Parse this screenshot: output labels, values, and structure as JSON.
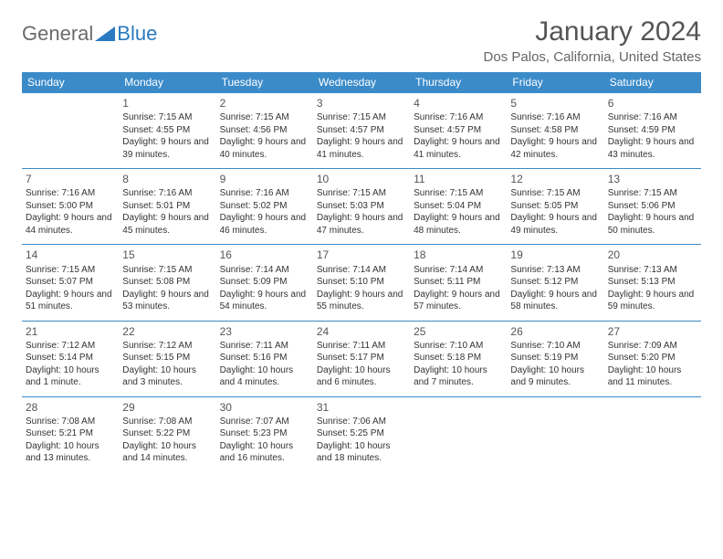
{
  "logo": {
    "general": "General",
    "blue": "Blue"
  },
  "title": "January 2024",
  "location": "Dos Palos, California, United States",
  "colors": {
    "header_bg": "#3b8bc9",
    "header_fg": "#ffffff",
    "border": "#3b8bc9",
    "text": "#333333",
    "title": "#555555",
    "subtitle": "#666666",
    "logo_gray": "#6b6b6b",
    "logo_blue": "#2a7ac0"
  },
  "day_labels": [
    "Sunday",
    "Monday",
    "Tuesday",
    "Wednesday",
    "Thursday",
    "Friday",
    "Saturday"
  ],
  "weeks": [
    [
      {
        "n": "",
        "sun": "",
        "set": "",
        "dl": ""
      },
      {
        "n": "1",
        "sun": "Sunrise: 7:15 AM",
        "set": "Sunset: 4:55 PM",
        "dl": "Daylight: 9 hours and 39 minutes."
      },
      {
        "n": "2",
        "sun": "Sunrise: 7:15 AM",
        "set": "Sunset: 4:56 PM",
        "dl": "Daylight: 9 hours and 40 minutes."
      },
      {
        "n": "3",
        "sun": "Sunrise: 7:15 AM",
        "set": "Sunset: 4:57 PM",
        "dl": "Daylight: 9 hours and 41 minutes."
      },
      {
        "n": "4",
        "sun": "Sunrise: 7:16 AM",
        "set": "Sunset: 4:57 PM",
        "dl": "Daylight: 9 hours and 41 minutes."
      },
      {
        "n": "5",
        "sun": "Sunrise: 7:16 AM",
        "set": "Sunset: 4:58 PM",
        "dl": "Daylight: 9 hours and 42 minutes."
      },
      {
        "n": "6",
        "sun": "Sunrise: 7:16 AM",
        "set": "Sunset: 4:59 PM",
        "dl": "Daylight: 9 hours and 43 minutes."
      }
    ],
    [
      {
        "n": "7",
        "sun": "Sunrise: 7:16 AM",
        "set": "Sunset: 5:00 PM",
        "dl": "Daylight: 9 hours and 44 minutes."
      },
      {
        "n": "8",
        "sun": "Sunrise: 7:16 AM",
        "set": "Sunset: 5:01 PM",
        "dl": "Daylight: 9 hours and 45 minutes."
      },
      {
        "n": "9",
        "sun": "Sunrise: 7:16 AM",
        "set": "Sunset: 5:02 PM",
        "dl": "Daylight: 9 hours and 46 minutes."
      },
      {
        "n": "10",
        "sun": "Sunrise: 7:15 AM",
        "set": "Sunset: 5:03 PM",
        "dl": "Daylight: 9 hours and 47 minutes."
      },
      {
        "n": "11",
        "sun": "Sunrise: 7:15 AM",
        "set": "Sunset: 5:04 PM",
        "dl": "Daylight: 9 hours and 48 minutes."
      },
      {
        "n": "12",
        "sun": "Sunrise: 7:15 AM",
        "set": "Sunset: 5:05 PM",
        "dl": "Daylight: 9 hours and 49 minutes."
      },
      {
        "n": "13",
        "sun": "Sunrise: 7:15 AM",
        "set": "Sunset: 5:06 PM",
        "dl": "Daylight: 9 hours and 50 minutes."
      }
    ],
    [
      {
        "n": "14",
        "sun": "Sunrise: 7:15 AM",
        "set": "Sunset: 5:07 PM",
        "dl": "Daylight: 9 hours and 51 minutes."
      },
      {
        "n": "15",
        "sun": "Sunrise: 7:15 AM",
        "set": "Sunset: 5:08 PM",
        "dl": "Daylight: 9 hours and 53 minutes."
      },
      {
        "n": "16",
        "sun": "Sunrise: 7:14 AM",
        "set": "Sunset: 5:09 PM",
        "dl": "Daylight: 9 hours and 54 minutes."
      },
      {
        "n": "17",
        "sun": "Sunrise: 7:14 AM",
        "set": "Sunset: 5:10 PM",
        "dl": "Daylight: 9 hours and 55 minutes."
      },
      {
        "n": "18",
        "sun": "Sunrise: 7:14 AM",
        "set": "Sunset: 5:11 PM",
        "dl": "Daylight: 9 hours and 57 minutes."
      },
      {
        "n": "19",
        "sun": "Sunrise: 7:13 AM",
        "set": "Sunset: 5:12 PM",
        "dl": "Daylight: 9 hours and 58 minutes."
      },
      {
        "n": "20",
        "sun": "Sunrise: 7:13 AM",
        "set": "Sunset: 5:13 PM",
        "dl": "Daylight: 9 hours and 59 minutes."
      }
    ],
    [
      {
        "n": "21",
        "sun": "Sunrise: 7:12 AM",
        "set": "Sunset: 5:14 PM",
        "dl": "Daylight: 10 hours and 1 minute."
      },
      {
        "n": "22",
        "sun": "Sunrise: 7:12 AM",
        "set": "Sunset: 5:15 PM",
        "dl": "Daylight: 10 hours and 3 minutes."
      },
      {
        "n": "23",
        "sun": "Sunrise: 7:11 AM",
        "set": "Sunset: 5:16 PM",
        "dl": "Daylight: 10 hours and 4 minutes."
      },
      {
        "n": "24",
        "sun": "Sunrise: 7:11 AM",
        "set": "Sunset: 5:17 PM",
        "dl": "Daylight: 10 hours and 6 minutes."
      },
      {
        "n": "25",
        "sun": "Sunrise: 7:10 AM",
        "set": "Sunset: 5:18 PM",
        "dl": "Daylight: 10 hours and 7 minutes."
      },
      {
        "n": "26",
        "sun": "Sunrise: 7:10 AM",
        "set": "Sunset: 5:19 PM",
        "dl": "Daylight: 10 hours and 9 minutes."
      },
      {
        "n": "27",
        "sun": "Sunrise: 7:09 AM",
        "set": "Sunset: 5:20 PM",
        "dl": "Daylight: 10 hours and 11 minutes."
      }
    ],
    [
      {
        "n": "28",
        "sun": "Sunrise: 7:08 AM",
        "set": "Sunset: 5:21 PM",
        "dl": "Daylight: 10 hours and 13 minutes."
      },
      {
        "n": "29",
        "sun": "Sunrise: 7:08 AM",
        "set": "Sunset: 5:22 PM",
        "dl": "Daylight: 10 hours and 14 minutes."
      },
      {
        "n": "30",
        "sun": "Sunrise: 7:07 AM",
        "set": "Sunset: 5:23 PM",
        "dl": "Daylight: 10 hours and 16 minutes."
      },
      {
        "n": "31",
        "sun": "Sunrise: 7:06 AM",
        "set": "Sunset: 5:25 PM",
        "dl": "Daylight: 10 hours and 18 minutes."
      },
      {
        "n": "",
        "sun": "",
        "set": "",
        "dl": ""
      },
      {
        "n": "",
        "sun": "",
        "set": "",
        "dl": ""
      },
      {
        "n": "",
        "sun": "",
        "set": "",
        "dl": ""
      }
    ]
  ]
}
